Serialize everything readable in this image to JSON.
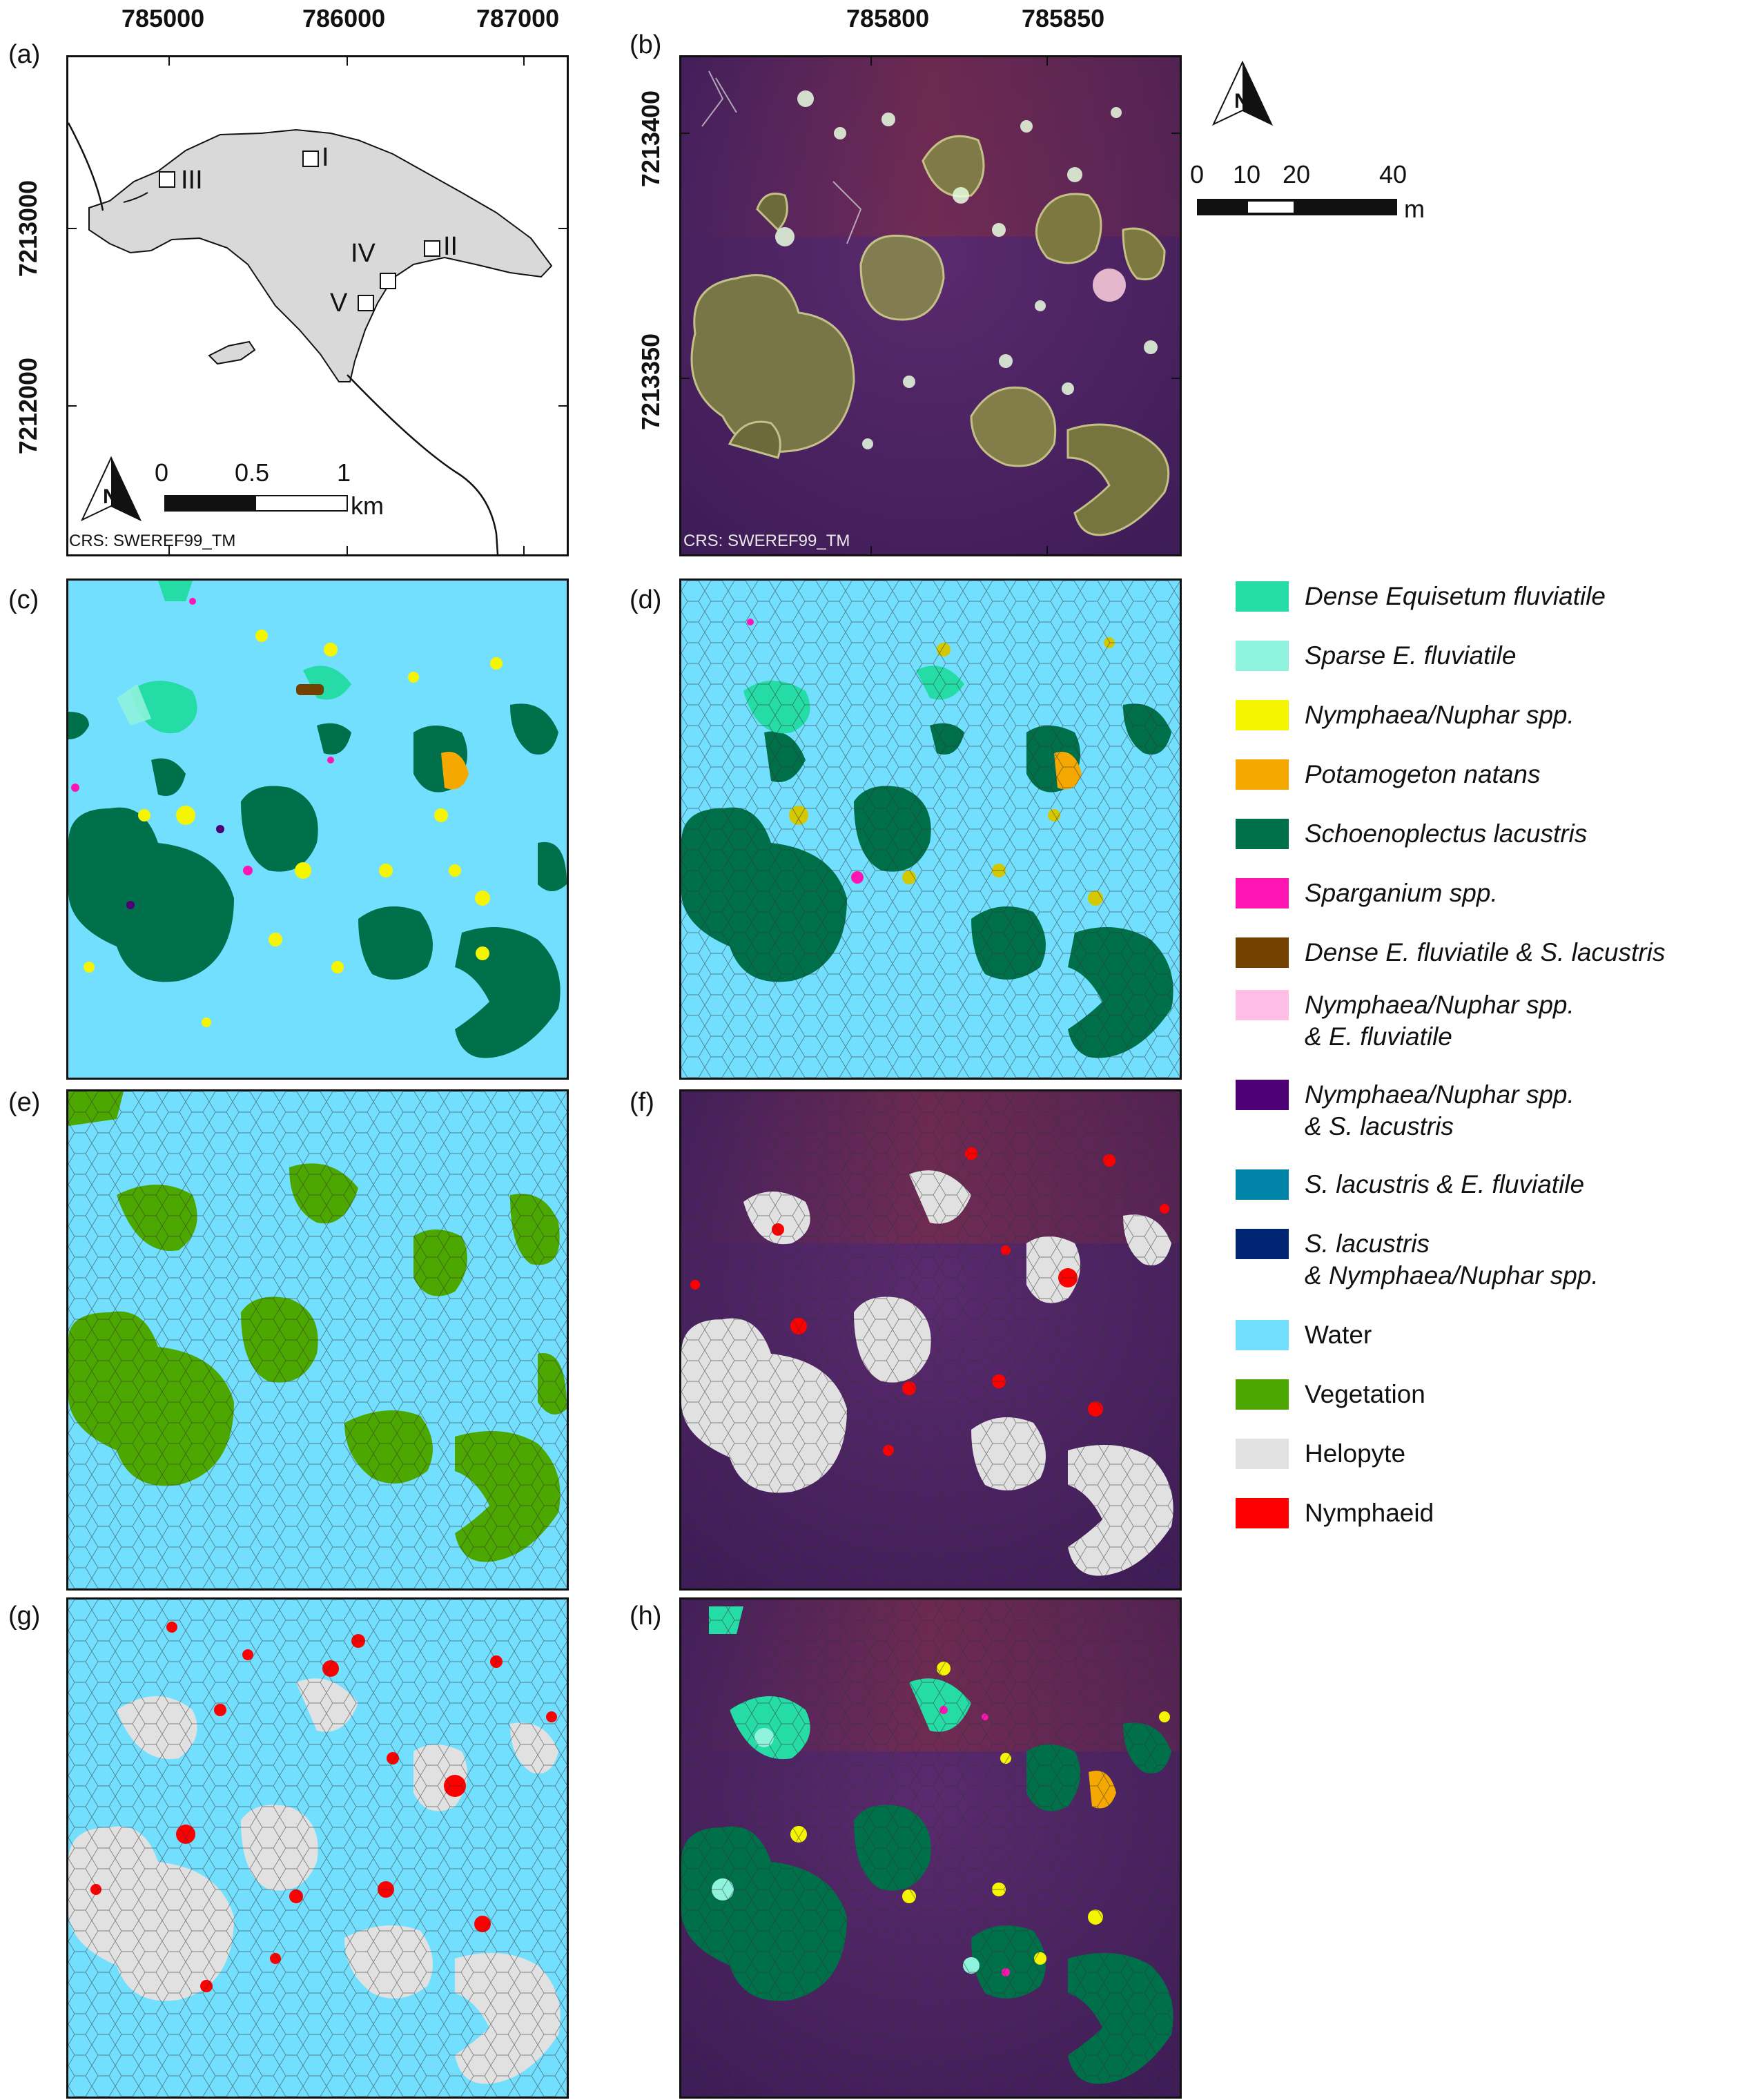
{
  "panels": {
    "a": {
      "label": "(a)",
      "crs": "CRS: SWEREF99_TM",
      "x_ticks": [
        "785000",
        "786000",
        "787000"
      ],
      "y_ticks": [
        "7213000",
        "7212000"
      ],
      "sites": [
        "I",
        "II",
        "III",
        "IV",
        "V"
      ],
      "scale": {
        "t0": "0",
        "t1": "0.5",
        "t2": "1",
        "unit": "km"
      }
    },
    "b": {
      "label": "(b)",
      "crs": "CRS: SWEREF99_TM",
      "x_ticks": [
        "785800",
        "785850"
      ],
      "y_ticks": [
        "7213400",
        "7213350"
      ],
      "scale": {
        "t0": "0",
        "t1": "10",
        "t2": "20",
        "t3": "40",
        "unit": "m"
      }
    },
    "c": {
      "label": "(c)"
    },
    "d": {
      "label": "(d)"
    },
    "e": {
      "label": "(e)"
    },
    "f": {
      "label": "(f)"
    },
    "g": {
      "label": "(g)"
    },
    "h": {
      "label": "(h)"
    }
  },
  "legend": [
    {
      "line1": "Dense Equisetum fluviatile",
      "line2": "",
      "color": "#26dca6",
      "italic": true
    },
    {
      "line1": "Sparse E. fluviatile",
      "line2": "",
      "color": "#8ef2dc",
      "italic": true
    },
    {
      "line1": "Nymphaea/Nuphar spp.",
      "line2": "",
      "color": "#f5f500",
      "italic": true
    },
    {
      "line1": "Potamogeton natans",
      "line2": "",
      "color": "#f5a800",
      "italic": true
    },
    {
      "line1": "Schoenoplectus lacustris",
      "line2": "",
      "color": "#00704a",
      "italic": true
    },
    {
      "line1": "Sparganium spp.",
      "line2": "",
      "color": "#ff14b4",
      "italic": true
    },
    {
      "line1": "Dense E. fluviatile & S. lacustris",
      "line2": "",
      "color": "#734000",
      "italic": true
    },
    {
      "line1": "Nymphaea/Nuphar spp.",
      "line2": "& E. fluviatile",
      "color": "#ffbee6",
      "italic": true
    },
    {
      "line1": "Nymphaea/Nuphar spp.",
      "line2": "& S. lacustris",
      "color": "#4c0073",
      "italic": true
    },
    {
      "line1": "S. lacustris & E. fluviatile",
      "line2": "",
      "color": "#0084a8",
      "italic": true
    },
    {
      "line1": "S. lacustris",
      "line2": "& Nymphaea/Nuphar spp.",
      "color": "#002673",
      "italic": true
    },
    {
      "line1": "Water",
      "line2": "",
      "color": "#73dfff",
      "italic": false
    },
    {
      "line1": "Vegetation",
      "line2": "",
      "color": "#4ca800",
      "italic": false
    },
    {
      "line1": "Helopyte",
      "line2": "",
      "color": "#e1e1e1",
      "italic": false
    },
    {
      "line1": "Nymphaeid",
      "line2": "",
      "color": "#ff0000",
      "italic": false
    }
  ]
}
